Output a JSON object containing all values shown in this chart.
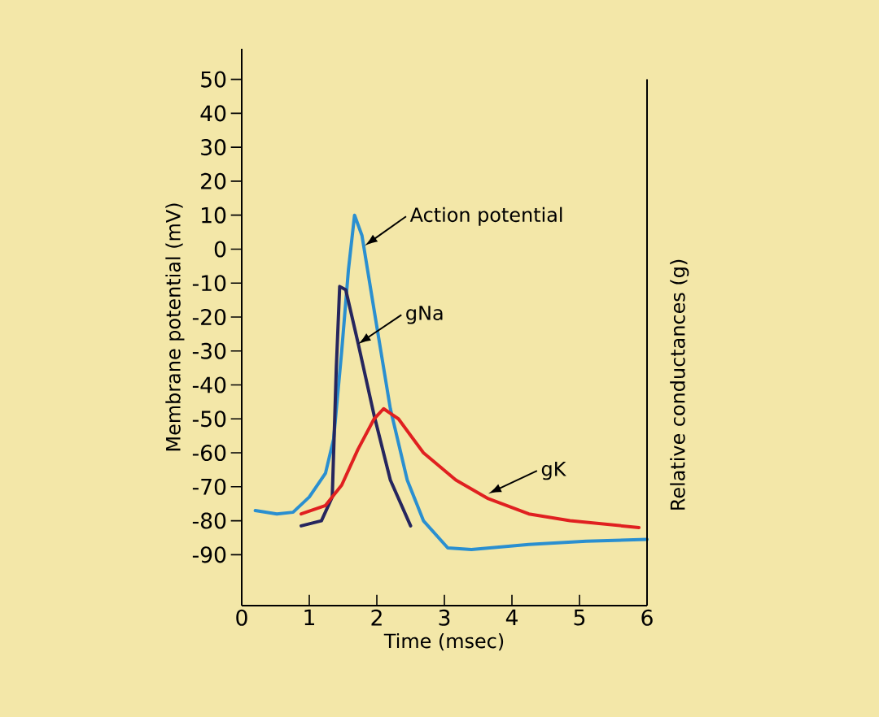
{
  "chart_data": {
    "type": "line",
    "xlabel": "Time (msec)",
    "ylabel": "Membrane potential (mV)",
    "y2label": "Relative conductances (g)",
    "xlim": [
      0,
      6
    ],
    "ylim": [
      -105,
      59
    ],
    "xticks": [
      0,
      1,
      2,
      3,
      4,
      5,
      6
    ],
    "yticks": [
      -90,
      -80,
      -70,
      -60,
      -50,
      -40,
      -30,
      -20,
      -10,
      0,
      10,
      20,
      30,
      40,
      50
    ],
    "series": [
      {
        "color": "#2a8fd0",
        "x": [
          0.2,
          0.52,
          0.76,
          1.0,
          1.24,
          1.36,
          1.48,
          1.58,
          1.67,
          1.78,
          1.96,
          2.2,
          2.45,
          2.69,
          3.05,
          3.4,
          4.25,
          5.1,
          6.0
        ],
        "values": [
          -77,
          -78,
          -77.5,
          -73,
          -66,
          -56,
          -30,
          -6,
          10,
          4,
          -18,
          -47,
          -68,
          -80,
          -88,
          -88.5,
          -87,
          -86,
          -85.5
        ]
      },
      {
        "color": "#26265e",
        "x": [
          0.88,
          1.18,
          1.34,
          1.4,
          1.45,
          1.54,
          1.72,
          1.96,
          2.2,
          2.5
        ],
        "values": [
          -81.5,
          -80,
          -73,
          -35,
          -11,
          -12,
          -27.5,
          -49,
          -68,
          -81.5
        ]
      },
      {
        "color": "#e02020",
        "x": [
          0.88,
          1.24,
          1.48,
          1.72,
          1.96,
          2.1,
          2.32,
          2.69,
          3.17,
          3.65,
          4.25,
          4.86,
          5.88
        ],
        "values": [
          -78,
          -75.5,
          -69.5,
          -59,
          -50,
          -47,
          -50,
          -60,
          -68,
          -73.5,
          -78,
          -80,
          -82
        ]
      }
    ],
    "annotations": [
      {
        "text": "Action potential",
        "x": 1.82,
        "y": 1
      },
      {
        "text": "gNa",
        "x": 1.72,
        "y": -28
      },
      {
        "text": "gK",
        "x": 3.65,
        "y": -72
      }
    ]
  }
}
